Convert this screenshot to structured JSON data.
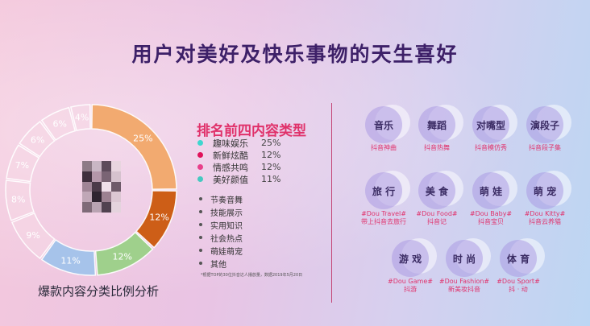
{
  "slide": {
    "title": "用户对美好及快乐事物的天生喜好",
    "chart_caption": "爆款内容分类比例分析"
  },
  "chart_data": {
    "type": "pie",
    "categories": [
      "",
      "",
      "",
      "",
      "",
      "",
      "",
      "",
      "",
      ""
    ],
    "values": [
      25,
      12,
      12,
      11,
      9,
      8,
      7,
      6,
      6,
      4
    ],
    "labels": [
      "25%",
      "12%",
      "12%",
      "11%",
      "9%",
      "8%",
      "7%",
      "6%",
      "6%",
      "4%"
    ],
    "colors": [
      "#f2aa70",
      "#cd5e17",
      "#9fd08c",
      "#a6c3ea",
      "#f6d8e6",
      "#f6d8e6",
      "#f6d8e6",
      "#f6d8e6",
      "#f6d8e6",
      "#f6d8e6"
    ],
    "label_colors": [
      "#ffffff",
      "#ffffff",
      "#ffffff",
      "#ffffff",
      "#ffffff",
      "#ffffff",
      "#ffffff",
      "#ffffff",
      "#ffffff",
      "#ffffff"
    ],
    "style": "donut"
  },
  "ranking": {
    "title": "排名前四内容类型",
    "items": [
      {
        "name": "趣味娱乐",
        "pct": "25%",
        "color": "#3fd6cf"
      },
      {
        "name": "新鲜炫酷",
        "pct": "12%",
        "color": "#e0125a"
      },
      {
        "name": "情感共鸣",
        "pct": "12%",
        "color": "#e8408a"
      },
      {
        "name": "美好颜值",
        "pct": "11%",
        "color": "#45c9c1"
      }
    ],
    "others": [
      "节奏音舞",
      "技能展示",
      "实用知识",
      "社会热点",
      "萌娃萌宠",
      "其他"
    ],
    "footnote": "*根据TOP的30位抖音达人播放量，数据2019年5月20日"
  },
  "categories": [
    {
      "label": "音乐",
      "sub": "抖音神曲"
    },
    {
      "label": "舞蹈",
      "sub": "抖音热舞"
    },
    {
      "label": "对嘴型",
      "sub": "抖音模仿秀"
    },
    {
      "label": "演段子",
      "sub": "抖音段子集"
    },
    {
      "label": "旅 行",
      "sub": "#Dou Travel#\n带上抖音去旅行"
    },
    {
      "label": "美 食",
      "sub": "#Dou Food#\n抖音记"
    },
    {
      "label": "萌 娃",
      "sub": "#Dou Baby#\n抖音宝贝"
    },
    {
      "label": "萌 宠",
      "sub": "#Dou Kitty#\n抖音云养猫"
    },
    {
      "label": "游 戏",
      "sub": "#Dou Game#\n抖游"
    },
    {
      "label": "时 尚",
      "sub": "#Dou Fashion#\n新美妆抖音"
    },
    {
      "label": "体 育",
      "sub": "#Dou Sport#\n抖 · 动"
    }
  ]
}
